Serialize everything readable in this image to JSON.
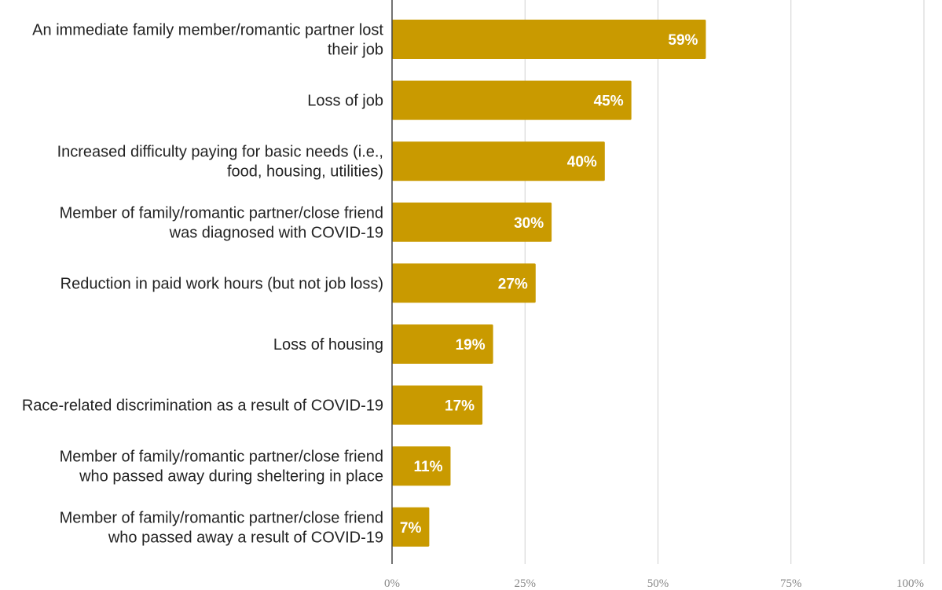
{
  "chart_data": {
    "type": "bar",
    "orientation": "horizontal",
    "categories": [
      [
        "An immediate family member/romantic partner lost",
        "their job"
      ],
      [
        "Loss of job"
      ],
      [
        "Increased difficulty paying for basic needs (i.e.,",
        "food, housing, utilities)"
      ],
      [
        "Member of family/romantic partner/close friend",
        "was diagnosed with COVID-19"
      ],
      [
        "Reduction in paid work hours (but not job loss)"
      ],
      [
        "Loss of housing"
      ],
      [
        "Race-related discrimination as a result of COVID-19"
      ],
      [
        "Member of family/romantic partner/close friend",
        "who passed away during sheltering in place"
      ],
      [
        "Member of family/romantic partner/close friend",
        "who passed away a result of COVID-19"
      ]
    ],
    "values": [
      59,
      45,
      40,
      30,
      27,
      19,
      17,
      11,
      7
    ],
    "data_labels": [
      "59%",
      "45%",
      "40%",
      "30%",
      "27%",
      "19%",
      "17%",
      "11%",
      "7%"
    ],
    "x_ticks": [
      0,
      25,
      50,
      75,
      100
    ],
    "x_tick_labels": [
      "0%",
      "25%",
      "50%",
      "75%",
      "100%"
    ],
    "xlim": [
      0,
      100
    ],
    "grid": true,
    "legend": "none",
    "bar_color": "#C99A00",
    "grid_color": "#d0d0d0",
    "axis_color": "#444444"
  }
}
